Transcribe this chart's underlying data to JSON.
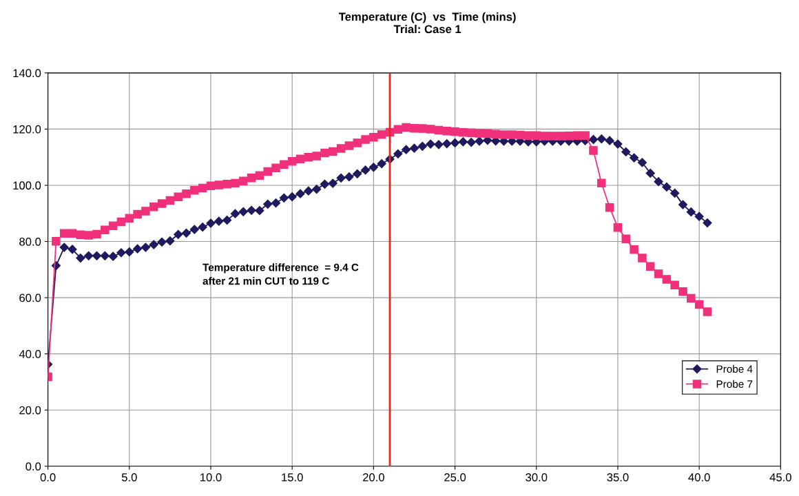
{
  "chart_data": {
    "type": "line",
    "title": "Temperature (C)  vs  Time (mins)\nTrial: Case 1",
    "x": [
      0,
      0.5,
      1,
      1.5,
      2,
      2.5,
      3,
      3.5,
      4,
      4.5,
      5,
      5.5,
      6,
      6.5,
      7,
      7.5,
      8,
      8.5,
      9,
      9.5,
      10,
      10.5,
      11,
      11.5,
      12,
      12.5,
      13,
      13.5,
      14,
      14.5,
      15,
      15.5,
      16,
      16.5,
      17,
      17.5,
      18,
      18.5,
      19,
      19.5,
      20,
      20.5,
      21,
      21.5,
      22,
      22.5,
      23,
      23.5,
      24,
      24.5,
      25,
      25.5,
      26,
      26.5,
      27,
      27.5,
      28,
      28.5,
      29,
      29.5,
      30,
      30.5,
      31,
      31.5,
      32,
      32.5,
      33,
      33.5,
      34,
      34.5,
      35,
      35.5,
      36,
      36.5,
      37,
      37.5,
      38,
      38.5,
      39,
      39.5,
      40,
      40.5
    ],
    "series": [
      {
        "name": "Probe 4",
        "color": "#1f1a5e",
        "marker": "diamond",
        "values": [
          36.3,
          71.4,
          77.9,
          77.2,
          74.1,
          74.9,
          74.9,
          74.9,
          74.7,
          76.0,
          76.3,
          77.4,
          77.9,
          78.9,
          79.8,
          80.2,
          82.5,
          83.0,
          84.3,
          85.1,
          86.5,
          87.2,
          87.6,
          89.9,
          90.6,
          91.1,
          91.0,
          93.3,
          93.7,
          95.5,
          95.9,
          97.0,
          98.0,
          98.6,
          100.4,
          100.7,
          102.6,
          103.0,
          104.1,
          105.4,
          106.4,
          107.7,
          109.3,
          111.2,
          112.7,
          113.2,
          113.9,
          114.7,
          114.5,
          114.8,
          115.1,
          115.5,
          115.3,
          115.7,
          116.0,
          115.8,
          115.7,
          115.7,
          115.7,
          115.5,
          115.5,
          115.7,
          115.7,
          115.7,
          115.7,
          115.7,
          115.9,
          116.3,
          116.5,
          115.9,
          114.7,
          111.9,
          109.8,
          108.1,
          104.3,
          101.3,
          99.4,
          97.2,
          93.1,
          90.5,
          88.9,
          86.6
        ]
      },
      {
        "name": "Probe 7",
        "color": "#f0307a",
        "marker": "square",
        "values": [
          31.8,
          80.1,
          82.9,
          82.9,
          82.4,
          82.2,
          82.6,
          84.1,
          85.6,
          87.0,
          88.3,
          89.7,
          90.8,
          92.3,
          93.5,
          94.6,
          95.9,
          97.0,
          98.2,
          99.0,
          99.8,
          100.1,
          100.4,
          100.7,
          101.5,
          102.6,
          103.5,
          104.9,
          106.2,
          107.4,
          108.5,
          109.4,
          110.0,
          110.4,
          111.5,
          112.0,
          113.1,
          114.1,
          115.1,
          116.3,
          117.1,
          118.1,
          118.9,
          119.9,
          120.6,
          120.3,
          120.2,
          120.0,
          119.6,
          119.3,
          119.1,
          118.8,
          118.7,
          118.5,
          118.4,
          118.2,
          118.0,
          118.0,
          117.9,
          117.7,
          117.7,
          117.5,
          117.5,
          117.5,
          117.6,
          117.7,
          117.7,
          112.4,
          100.8,
          92.1,
          85.0,
          80.9,
          77.1,
          74.1,
          71.1,
          68.5,
          66.5,
          64.5,
          62.2,
          59.8,
          57.6,
          55.0
        ]
      }
    ],
    "xlim": [
      0,
      45
    ],
    "xticks": [
      {
        "value": 0,
        "label": "0.0"
      },
      {
        "value": 5,
        "label": "5.0"
      },
      {
        "value": 10,
        "label": "10.0"
      },
      {
        "value": 15,
        "label": "15.0"
      },
      {
        "value": 20,
        "label": "20.0"
      },
      {
        "value": 25,
        "label": "25.0"
      },
      {
        "value": 30,
        "label": "30.0"
      },
      {
        "value": 35,
        "label": "35.0"
      },
      {
        "value": 40,
        "label": "40.0"
      },
      {
        "value": 45,
        "label": "45.0"
      }
    ],
    "ylim": [
      0,
      140
    ],
    "yticks": [
      {
        "value": 0,
        "label": "0.0"
      },
      {
        "value": 20,
        "label": "20.0"
      },
      {
        "value": 40,
        "label": "40.0"
      },
      {
        "value": 60,
        "label": "60.0"
      },
      {
        "value": 80,
        "label": "80.0"
      },
      {
        "value": 100,
        "label": "100.0"
      },
      {
        "value": 120,
        "label": "120.0"
      },
      {
        "value": 140,
        "label": "140.0"
      }
    ],
    "ref_lines": [
      {
        "axis": "x",
        "value": 21,
        "color": "#e8281e"
      }
    ],
    "annotations": [
      "Temperature difference  = 9.4 C\nafter 21 min CUT to 119 C"
    ],
    "grid": true,
    "legend": "lower right",
    "line_style": "solid"
  }
}
